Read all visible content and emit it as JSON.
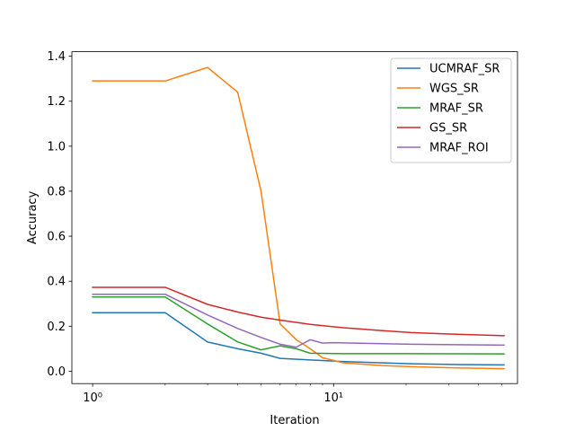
{
  "chart_data": {
    "type": "line",
    "title": "",
    "xlabel": "Iteration",
    "ylabel": "Accuracy",
    "xscale": "log",
    "xlim": [
      0.82,
      58
    ],
    "ylim": [
      -0.055,
      1.42
    ],
    "x_major_ticks": [
      1,
      10
    ],
    "x_tick_labels": [
      "10⁰",
      "10¹"
    ],
    "x_minor_ticks": [
      2,
      3,
      4,
      5,
      6,
      7,
      8,
      9,
      20,
      30,
      40,
      50
    ],
    "y_ticks": [
      0.0,
      0.2,
      0.4,
      0.6,
      0.8,
      1.0,
      1.2,
      1.4
    ],
    "y_tick_labels": [
      "0.0",
      "0.2",
      "0.4",
      "0.6",
      "0.8",
      "1.0",
      "1.2",
      "1.4"
    ],
    "grid": false,
    "legend_position": "top-right",
    "series": [
      {
        "name": "UCMRAF_SR",
        "color": "#1f77b4",
        "points": [
          [
            0,
            0.26
          ],
          [
            1,
            0.26
          ],
          [
            2,
            0.13
          ],
          [
            3,
            0.1
          ],
          [
            4,
            0.08
          ],
          [
            5,
            0.057
          ],
          [
            7,
            0.05
          ],
          [
            10,
            0.043
          ],
          [
            15,
            0.037
          ],
          [
            20,
            0.033
          ],
          [
            30,
            0.03
          ],
          [
            50,
            0.028
          ]
        ]
      },
      {
        "name": "WGS_SR",
        "color": "#ff7f0e",
        "points": [
          [
            0,
            1.29
          ],
          [
            1,
            1.29
          ],
          [
            2,
            1.35
          ],
          [
            3,
            1.24
          ],
          [
            4,
            0.8
          ],
          [
            5,
            0.21
          ],
          [
            6,
            0.14
          ],
          [
            7,
            0.1
          ],
          [
            8,
            0.06
          ],
          [
            10,
            0.037
          ],
          [
            15,
            0.025
          ],
          [
            20,
            0.02
          ],
          [
            30,
            0.015
          ],
          [
            50,
            0.011
          ]
        ]
      },
      {
        "name": "MRAF_SR",
        "color": "#2ca02c",
        "points": [
          [
            0,
            0.33
          ],
          [
            1,
            0.33
          ],
          [
            2,
            0.21
          ],
          [
            3,
            0.13
          ],
          [
            4,
            0.095
          ],
          [
            5,
            0.113
          ],
          [
            6,
            0.1
          ],
          [
            7,
            0.08
          ],
          [
            10,
            0.078
          ],
          [
            20,
            0.078
          ],
          [
            50,
            0.077
          ]
        ]
      },
      {
        "name": "GS_SR",
        "color": "#d62728",
        "points": [
          [
            0,
            0.373
          ],
          [
            1,
            0.373
          ],
          [
            2,
            0.297
          ],
          [
            3,
            0.263
          ],
          [
            4,
            0.24
          ],
          [
            5,
            0.227
          ],
          [
            7,
            0.208
          ],
          [
            10,
            0.193
          ],
          [
            15,
            0.18
          ],
          [
            20,
            0.172
          ],
          [
            30,
            0.165
          ],
          [
            50,
            0.158
          ]
        ]
      },
      {
        "name": "MRAF_ROI",
        "color": "#9467bd",
        "points": [
          [
            0,
            0.342
          ],
          [
            1,
            0.342
          ],
          [
            2,
            0.25
          ],
          [
            3,
            0.19
          ],
          [
            4,
            0.15
          ],
          [
            5,
            0.12
          ],
          [
            6,
            0.107
          ],
          [
            7,
            0.14
          ],
          [
            8,
            0.125
          ],
          [
            9,
            0.127
          ],
          [
            10,
            0.126
          ],
          [
            20,
            0.12
          ],
          [
            50,
            0.116
          ]
        ]
      }
    ]
  }
}
